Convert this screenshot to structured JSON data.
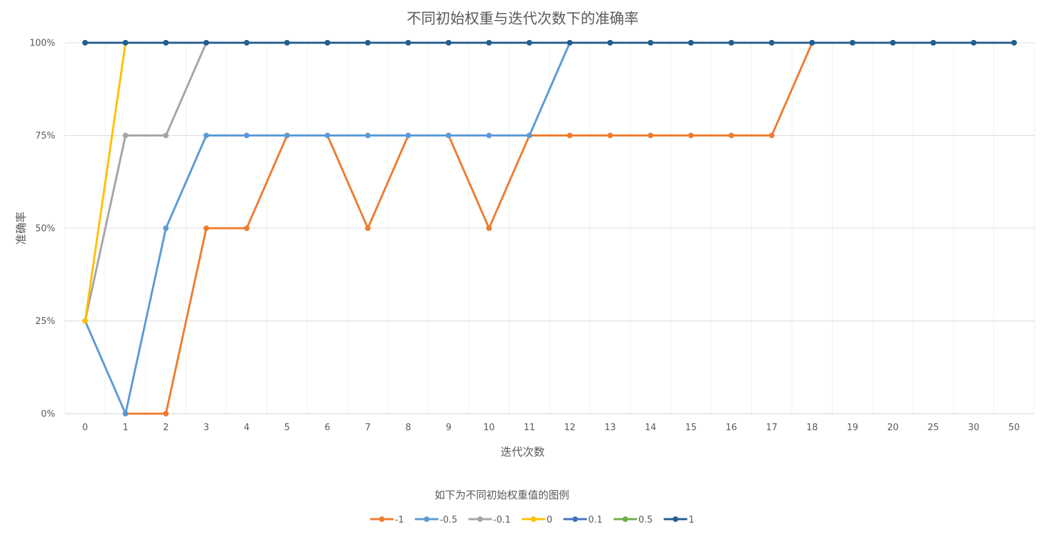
{
  "chart_data": {
    "type": "line",
    "title": "不同初始权重与迭代次数下的准确率",
    "xlabel": "迭代次数",
    "ylabel": "准确率",
    "legend_title": "如下为不同初始权重值的图例",
    "legend_position": "bottom",
    "grid": true,
    "categories": [
      "0",
      "1",
      "2",
      "3",
      "4",
      "5",
      "6",
      "7",
      "8",
      "9",
      "10",
      "11",
      "12",
      "13",
      "14",
      "15",
      "16",
      "17",
      "18",
      "19",
      "20",
      "25",
      "30",
      "50"
    ],
    "y_ticks": [
      "0%",
      "25%",
      "50%",
      "75%",
      "100%"
    ],
    "ylim": [
      0,
      1
    ],
    "series": [
      {
        "name": "-1",
        "color": "#ED7D31",
        "values": [
          null,
          0,
          0,
          0.5,
          0.5,
          0.75,
          0.75,
          0.5,
          0.75,
          0.75,
          0.5,
          0.75,
          0.75,
          0.75,
          0.75,
          0.75,
          0.75,
          0.75,
          1,
          1,
          1,
          1,
          1,
          1
        ]
      },
      {
        "name": "-0.5",
        "color": "#5B9BD5",
        "values": [
          0.25,
          0,
          0.5,
          0.75,
          0.75,
          0.75,
          0.75,
          0.75,
          0.75,
          0.75,
          0.75,
          0.75,
          1,
          1,
          1,
          1,
          1,
          1,
          1,
          1,
          1,
          1,
          1,
          1
        ]
      },
      {
        "name": "-0.1",
        "color": "#A5A5A5",
        "values": [
          0.25,
          0.75,
          0.75,
          1,
          1,
          1,
          1,
          1,
          1,
          1,
          1,
          1,
          1,
          1,
          1,
          1,
          1,
          1,
          1,
          1,
          1,
          1,
          1,
          1
        ]
      },
      {
        "name": "0",
        "color": "#FFC000",
        "values": [
          0.25,
          1,
          1,
          1,
          1,
          1,
          1,
          1,
          1,
          1,
          1,
          1,
          1,
          1,
          1,
          1,
          1,
          1,
          1,
          1,
          1,
          1,
          1,
          1
        ]
      },
      {
        "name": "0.1",
        "color": "#4472C4",
        "values": [
          1,
          1,
          1,
          1,
          1,
          1,
          1,
          1,
          1,
          1,
          1,
          1,
          1,
          1,
          1,
          1,
          1,
          1,
          1,
          1,
          1,
          1,
          1,
          1
        ]
      },
      {
        "name": "0.5",
        "color": "#70AD47",
        "values": [
          1,
          1,
          1,
          1,
          1,
          1,
          1,
          1,
          1,
          1,
          1,
          1,
          1,
          1,
          1,
          1,
          1,
          1,
          1,
          1,
          1,
          1,
          1,
          1
        ]
      },
      {
        "name": "1",
        "color": "#255E91",
        "values": [
          1,
          1,
          1,
          1,
          1,
          1,
          1,
          1,
          1,
          1,
          1,
          1,
          1,
          1,
          1,
          1,
          1,
          1,
          1,
          1,
          1,
          1,
          1,
          1
        ]
      }
    ]
  }
}
